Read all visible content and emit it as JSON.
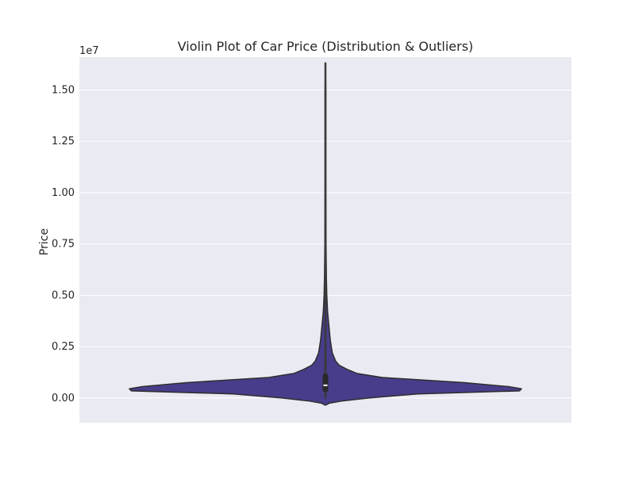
{
  "chart_data": {
    "type": "violin",
    "title": "Violin Plot of Car Price (Distribution & Outliers)",
    "xlabel": "",
    "ylabel": "Price",
    "offset_label": "1e7",
    "y_unit_multiplier": 10000000,
    "ylim": [
      -0.12,
      1.66
    ],
    "yticks": [
      0.0,
      0.25,
      0.5,
      0.75,
      1.0,
      1.25,
      1.5
    ],
    "ytick_labels": [
      "0.00",
      "0.25",
      "0.50",
      "0.75",
      "1.00",
      "1.25",
      "1.50"
    ],
    "grid": true,
    "violin_color": "#483D8B",
    "edge_color": "#2e2e2e",
    "background_color": "#EAEAF2",
    "grid_color": "#ffffff",
    "density_profile": [
      {
        "y": -0.035,
        "w": 0.0
      },
      {
        "y": -0.025,
        "w": 0.02
      },
      {
        "y": -0.015,
        "w": 0.08
      },
      {
        "y": 0.0,
        "w": 0.22
      },
      {
        "y": 0.02,
        "w": 0.47
      },
      {
        "y": 0.035,
        "w": 0.99
      },
      {
        "y": 0.045,
        "w": 1.0
      },
      {
        "y": 0.055,
        "w": 0.94
      },
      {
        "y": 0.075,
        "w": 0.71
      },
      {
        "y": 0.1,
        "w": 0.29
      },
      {
        "y": 0.12,
        "w": 0.16
      },
      {
        "y": 0.14,
        "w": 0.11
      },
      {
        "y": 0.16,
        "w": 0.07
      },
      {
        "y": 0.18,
        "w": 0.052
      },
      {
        "y": 0.22,
        "w": 0.035
      },
      {
        "y": 0.28,
        "w": 0.025
      },
      {
        "y": 0.35,
        "w": 0.018
      },
      {
        "y": 0.42,
        "w": 0.011
      },
      {
        "y": 0.5,
        "w": 0.007
      },
      {
        "y": 0.58,
        "w": 0.005
      },
      {
        "y": 0.66,
        "w": 0.004
      },
      {
        "y": 0.75,
        "w": 0.003
      },
      {
        "y": 0.9,
        "w": 0.0025
      },
      {
        "y": 1.1,
        "w": 0.002
      },
      {
        "y": 1.3,
        "w": 0.002
      },
      {
        "y": 1.5,
        "w": 0.002
      },
      {
        "y": 1.63,
        "w": 0.0
      }
    ],
    "whisker_low": 0.0,
    "whisker_high": 1.63,
    "q1": 0.03,
    "q3": 0.12,
    "median": 0.062,
    "inner_whisker_low": 0.015,
    "inner_whisker_high": 0.195
  }
}
